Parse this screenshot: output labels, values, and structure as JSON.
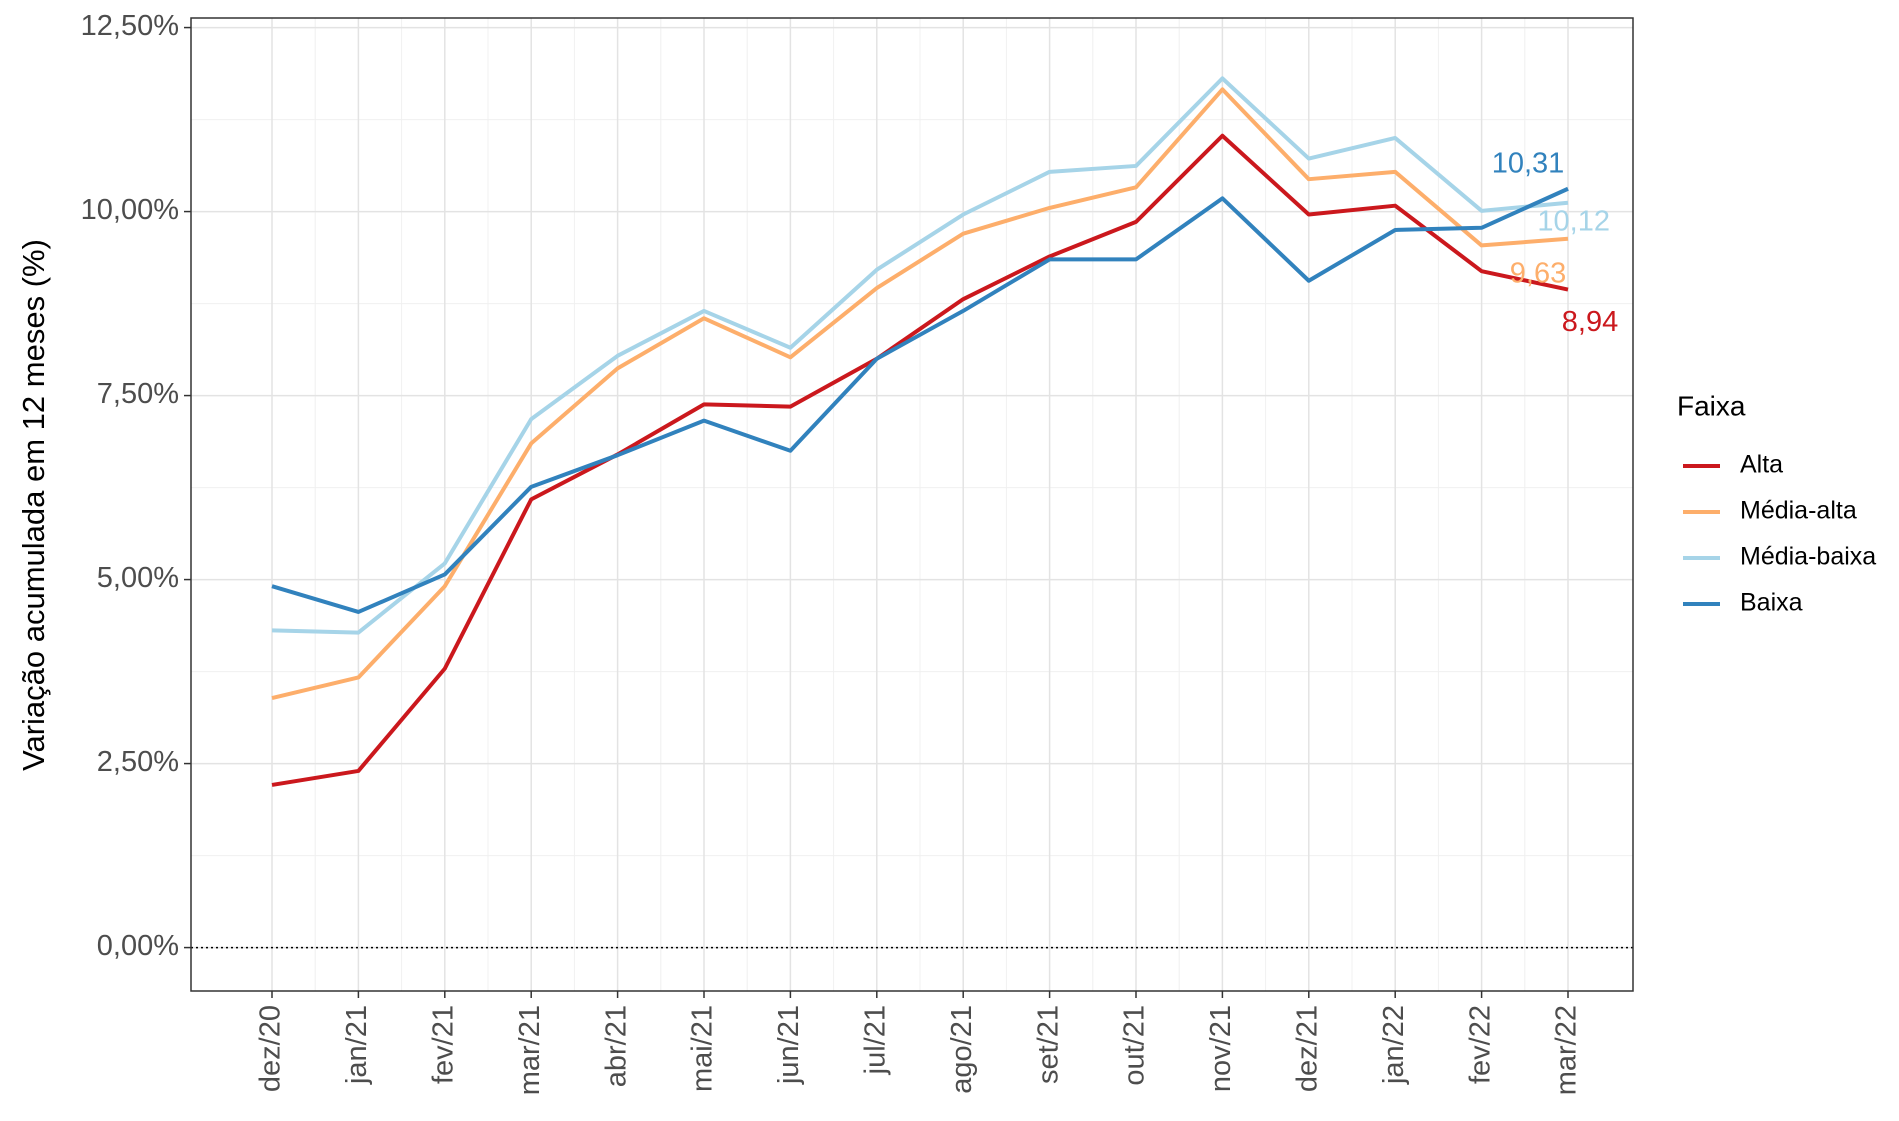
{
  "chart_data": {
    "type": "line",
    "y_label": "Variação acumulada em 12 meses (%)",
    "categories": [
      "dez/20",
      "jan/21",
      "fev/21",
      "mar/21",
      "abr/21",
      "mai/21",
      "jun/21",
      "jul/21",
      "ago/21",
      "set/21",
      "out/21",
      "nov/21",
      "dez/21",
      "jan/22",
      "fev/22",
      "mar/22"
    ],
    "series": [
      {
        "name": "Alta",
        "color": "#cb181d",
        "values": [
          2.21,
          2.4,
          3.79,
          6.09,
          6.7,
          7.38,
          7.35,
          8.0,
          8.81,
          9.39,
          9.86,
          11.03,
          9.96,
          10.08,
          9.19,
          8.94
        ],
        "value_labels": [
          null,
          null,
          null,
          null,
          null,
          null,
          null,
          null,
          null,
          null,
          null,
          null,
          null,
          null,
          null,
          "8,94"
        ]
      },
      {
        "name": "Média-alta",
        "color": "#fdae6b",
        "values": [
          3.39,
          3.67,
          4.91,
          6.85,
          7.87,
          8.55,
          8.02,
          8.96,
          9.7,
          10.05,
          10.33,
          11.66,
          10.44,
          10.54,
          9.54,
          9.63
        ],
        "value_labels": [
          null,
          null,
          null,
          null,
          null,
          null,
          null,
          null,
          null,
          null,
          null,
          null,
          null,
          null,
          null,
          "9,63"
        ]
      },
      {
        "name": "Média-baixa",
        "color": "#a6d4e8",
        "values": [
          4.31,
          4.28,
          5.22,
          7.18,
          8.04,
          8.65,
          8.15,
          9.21,
          9.96,
          10.54,
          10.62,
          11.81,
          10.72,
          11.0,
          10.01,
          10.12
        ],
        "value_labels": [
          null,
          null,
          null,
          null,
          null,
          null,
          null,
          null,
          null,
          null,
          null,
          null,
          null,
          null,
          null,
          "10,12"
        ]
      },
      {
        "name": "Baixa",
        "color": "#3182bd",
        "values": [
          4.91,
          4.56,
          5.07,
          6.26,
          6.69,
          7.16,
          6.75,
          8.0,
          8.65,
          9.35,
          9.35,
          10.18,
          9.06,
          9.75,
          9.78,
          10.31
        ],
        "value_labels": [
          null,
          null,
          null,
          null,
          null,
          null,
          null,
          null,
          null,
          null,
          null,
          null,
          null,
          null,
          null,
          "10,31"
        ]
      }
    ],
    "ylim": [
      -0.59,
      12.63
    ],
    "yticks": [
      {
        "value": 0,
        "label": "0,00%"
      },
      {
        "value": 2.5,
        "label": "2,50%"
      },
      {
        "value": 5,
        "label": "5,00%"
      },
      {
        "value": 7.5,
        "label": "7,50%"
      },
      {
        "value": 10,
        "label": "10,00%"
      },
      {
        "value": 12.5,
        "label": "12,50%"
      }
    ],
    "grid": true,
    "reference_line": {
      "value": 0,
      "style": "dotted"
    },
    "legend": {
      "title": "Faixa",
      "position": "right"
    }
  }
}
